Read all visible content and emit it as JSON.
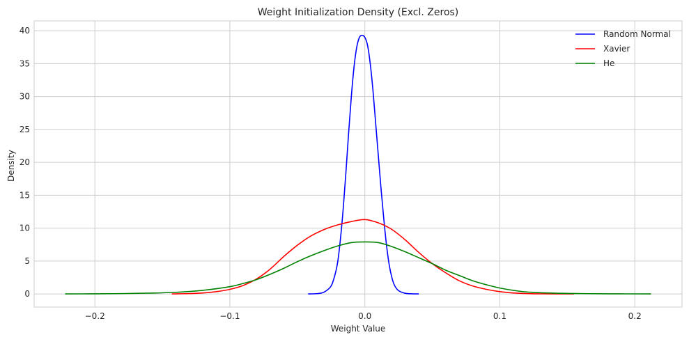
{
  "chart_data": {
    "type": "line",
    "title": "Weight Initialization Density (Excl. Zeros)",
    "xlabel": "Weight Value",
    "ylabel": "Density",
    "xlim": [
      -0.245,
      0.235
    ],
    "ylim": [
      -2.0,
      41.5
    ],
    "xticks": [
      -0.2,
      -0.1,
      0.0,
      0.1,
      0.2
    ],
    "xtick_labels": [
      "−0.2",
      "−0.1",
      "0.0",
      "0.1",
      "0.2"
    ],
    "yticks": [
      0,
      5,
      10,
      15,
      20,
      25,
      30,
      35,
      40
    ],
    "ytick_labels": [
      "0",
      "5",
      "10",
      "15",
      "20",
      "25",
      "30",
      "35",
      "40"
    ],
    "grid": true,
    "legend_position": "top-right",
    "series": [
      {
        "name": "Random Normal",
        "color": "#0000ff",
        "x": [
          -0.042,
          -0.035,
          -0.03,
          -0.025,
          -0.022,
          -0.02,
          -0.018,
          -0.016,
          -0.014,
          -0.012,
          -0.01,
          -0.008,
          -0.006,
          -0.004,
          -0.002,
          0.0,
          0.002,
          0.004,
          0.006,
          0.008,
          0.01,
          0.012,
          0.014,
          0.016,
          0.018,
          0.02,
          0.022,
          0.025,
          0.03,
          0.035,
          0.04
        ],
        "y": [
          0.0,
          0.05,
          0.3,
          1.2,
          3.0,
          5.0,
          8.5,
          13.0,
          18.5,
          24.5,
          30.0,
          34.5,
          37.5,
          39.0,
          39.3,
          39.0,
          37.8,
          35.0,
          31.0,
          26.0,
          21.0,
          16.0,
          11.5,
          7.5,
          4.5,
          2.5,
          1.3,
          0.5,
          0.1,
          0.02,
          0.0
        ]
      },
      {
        "name": "Xavier",
        "color": "#ff0000",
        "x": [
          -0.143,
          -0.13,
          -0.12,
          -0.11,
          -0.1,
          -0.09,
          -0.08,
          -0.07,
          -0.06,
          -0.05,
          -0.04,
          -0.03,
          -0.02,
          -0.01,
          0.0,
          0.01,
          0.02,
          0.03,
          0.04,
          0.05,
          0.06,
          0.07,
          0.08,
          0.09,
          0.1,
          0.11,
          0.12,
          0.13,
          0.155
        ],
        "y": [
          0.0,
          0.05,
          0.15,
          0.35,
          0.7,
          1.3,
          2.3,
          3.8,
          5.7,
          7.4,
          8.8,
          9.8,
          10.5,
          11.0,
          11.3,
          10.8,
          9.8,
          8.2,
          6.3,
          4.6,
          3.2,
          2.0,
          1.2,
          0.7,
          0.35,
          0.15,
          0.05,
          0.02,
          0.0
        ]
      },
      {
        "name": "He",
        "color": "#008000",
        "x": [
          -0.222,
          -0.2,
          -0.18,
          -0.16,
          -0.14,
          -0.12,
          -0.1,
          -0.09,
          -0.08,
          -0.07,
          -0.06,
          -0.05,
          -0.04,
          -0.03,
          -0.02,
          -0.01,
          0.0,
          0.01,
          0.02,
          0.03,
          0.04,
          0.05,
          0.06,
          0.07,
          0.08,
          0.09,
          0.1,
          0.11,
          0.12,
          0.14,
          0.16,
          0.18,
          0.212
        ],
        "y": [
          0.0,
          0.02,
          0.05,
          0.12,
          0.25,
          0.55,
          1.1,
          1.6,
          2.2,
          3.0,
          3.9,
          4.9,
          5.8,
          6.6,
          7.3,
          7.8,
          7.9,
          7.8,
          7.2,
          6.4,
          5.5,
          4.6,
          3.6,
          2.8,
          2.0,
          1.4,
          0.9,
          0.55,
          0.3,
          0.12,
          0.05,
          0.02,
          0.0
        ]
      }
    ]
  }
}
